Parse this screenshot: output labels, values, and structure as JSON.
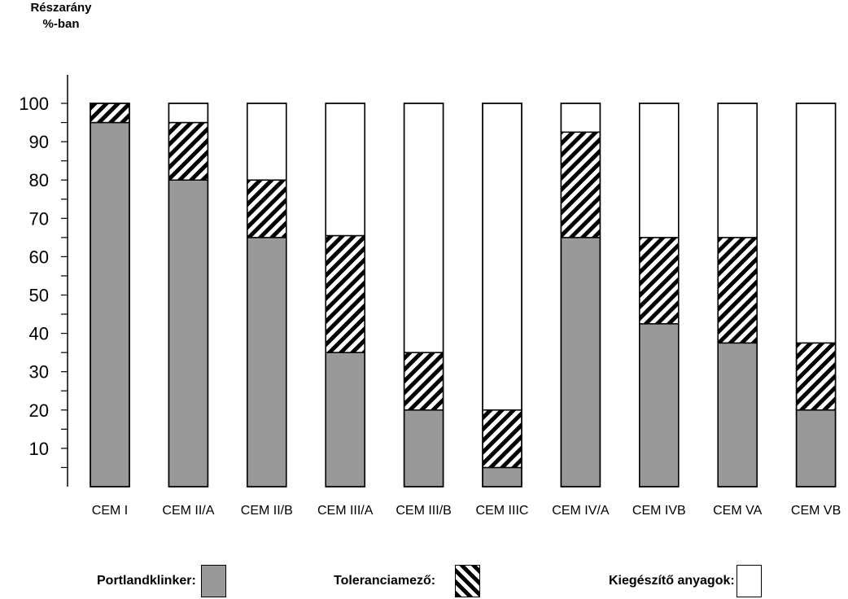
{
  "colors": {
    "portland": "#999999",
    "tolerance_stripe": "#000000",
    "supplementary": "#ffffff",
    "axis": "#000000"
  },
  "chart_data": {
    "type": "bar",
    "stacked": true,
    "ylabel": [
      "Részarány",
      "%-ban"
    ],
    "ylim": [
      0,
      100
    ],
    "yticks": [
      10,
      20,
      30,
      40,
      50,
      60,
      70,
      80,
      90,
      100
    ],
    "categories": [
      "CEM I",
      "CEM II/A",
      "CEM II/B",
      "CEM III/A",
      "CEM III/B",
      "CEM IIIC",
      "CEM IV/A",
      "CEM IVB",
      "CEM VA",
      "CEM VB"
    ],
    "series": [
      {
        "name": "Portlandklinker:",
        "values": [
          95,
          80,
          65,
          35,
          20,
          5,
          65,
          42.5,
          37.5,
          20
        ]
      },
      {
        "name": "Toleranciamező:",
        "values": [
          5,
          15,
          15,
          30.5,
          15,
          15,
          27.5,
          22.5,
          27.5,
          17.5
        ]
      },
      {
        "name": "Kiegészítő anyagok:",
        "values": [
          0,
          5,
          20,
          34.5,
          65,
          80,
          7.5,
          35,
          35,
          62.5
        ]
      }
    ],
    "legend_position": "bottom",
    "grid": false
  }
}
